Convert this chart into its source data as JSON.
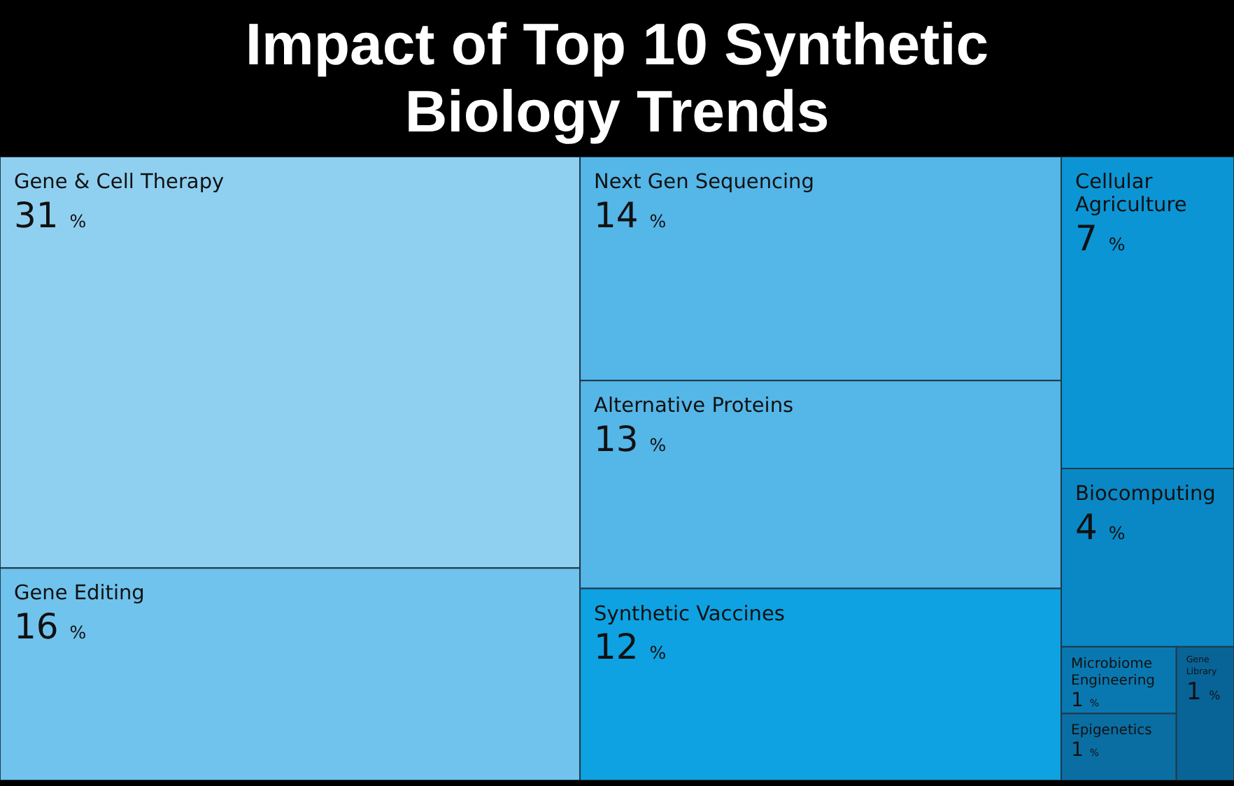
{
  "chart_data": {
    "type": "other",
    "title": "Impact of Top 10 Synthetic Biology Trends",
    "categories": [
      "Gene & Cell Therapy",
      "Gene Editing",
      "Next Gen Sequencing",
      "Alternative Proteins",
      "Synthetic Vaccines",
      "Cellular Agriculture",
      "Biocomputing",
      "Microbiome Engineering",
      "Epigenetics",
      "Gene Library"
    ],
    "values": [
      31,
      16,
      14,
      13,
      12,
      7,
      4,
      1,
      1,
      1
    ],
    "value_labels": [
      "31 %",
      "16 %",
      "14 %",
      "13 %",
      "12 %",
      "7 %",
      "4 %",
      "1 %",
      "1 %",
      "1 %"
    ],
    "colors": [
      "#8fd0f1",
      "#70c3ed",
      "#55b6e8",
      "#55b6e8",
      "#0ea2e2",
      "#0b95d5",
      "#0a88c5",
      "#0a78b0",
      "#0a6ea3",
      "#086497"
    ]
  }
}
